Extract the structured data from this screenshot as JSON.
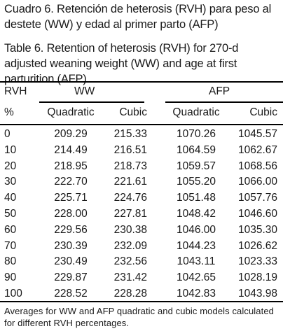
{
  "caption_es": "Cuadro 6. Retención de heterosis (RVH) para peso al destete (WW) y edad al primer parto (AFP)",
  "caption_en": "Table 6. Retention of heterosis (RVH) for 270-d adjusted weaning weight (WW) and age at first parturition (AFP)",
  "header": {
    "rvh": "RVH",
    "ww": "WW",
    "afp": "AFP",
    "unit": "%",
    "ww_quadratic": "Quadratic",
    "ww_cubic": "Cubic",
    "afp_quadratic": "Quadratic",
    "afp_cubic": "Cubic"
  },
  "rows": [
    {
      "rvh": "0",
      "ww_quadratic": "209.29",
      "ww_cubic": "215.33",
      "afp_quadratic": "1070.26",
      "afp_cubic": "1045.57"
    },
    {
      "rvh": "10",
      "ww_quadratic": "214.49",
      "ww_cubic": "216.51",
      "afp_quadratic": "1064.59",
      "afp_cubic": "1062.67"
    },
    {
      "rvh": "20",
      "ww_quadratic": "218.95",
      "ww_cubic": "218.73",
      "afp_quadratic": "1059.57",
      "afp_cubic": "1068.56"
    },
    {
      "rvh": "30",
      "ww_quadratic": "222.70",
      "ww_cubic": "221.61",
      "afp_quadratic": "1055.20",
      "afp_cubic": "1066.00"
    },
    {
      "rvh": "40",
      "ww_quadratic": "225.71",
      "ww_cubic": "224.76",
      "afp_quadratic": "1051.48",
      "afp_cubic": "1057.76"
    },
    {
      "rvh": "50",
      "ww_quadratic": "228.00",
      "ww_cubic": "227.81",
      "afp_quadratic": "1048.42",
      "afp_cubic": "1046.60"
    },
    {
      "rvh": "60",
      "ww_quadratic": "229.56",
      "ww_cubic": "230.38",
      "afp_quadratic": "1046.00",
      "afp_cubic": "1035.30"
    },
    {
      "rvh": "70",
      "ww_quadratic": "230.39",
      "ww_cubic": "232.09",
      "afp_quadratic": "1044.23",
      "afp_cubic": "1026.62"
    },
    {
      "rvh": "80",
      "ww_quadratic": "230.49",
      "ww_cubic": "232.56",
      "afp_quadratic": "1043.11",
      "afp_cubic": "1023.33"
    },
    {
      "rvh": "90",
      "ww_quadratic": "229.87",
      "ww_cubic": "231.42",
      "afp_quadratic": "1042.65",
      "afp_cubic": "1028.19"
    },
    {
      "rvh": "100",
      "ww_quadratic": "228.52",
      "ww_cubic": "228.28",
      "afp_quadratic": "1042.83",
      "afp_cubic": "1043.98"
    }
  ],
  "footnote": "Averages for WW and AFP quadratic and cubic models calculated for different RVH percentages."
}
